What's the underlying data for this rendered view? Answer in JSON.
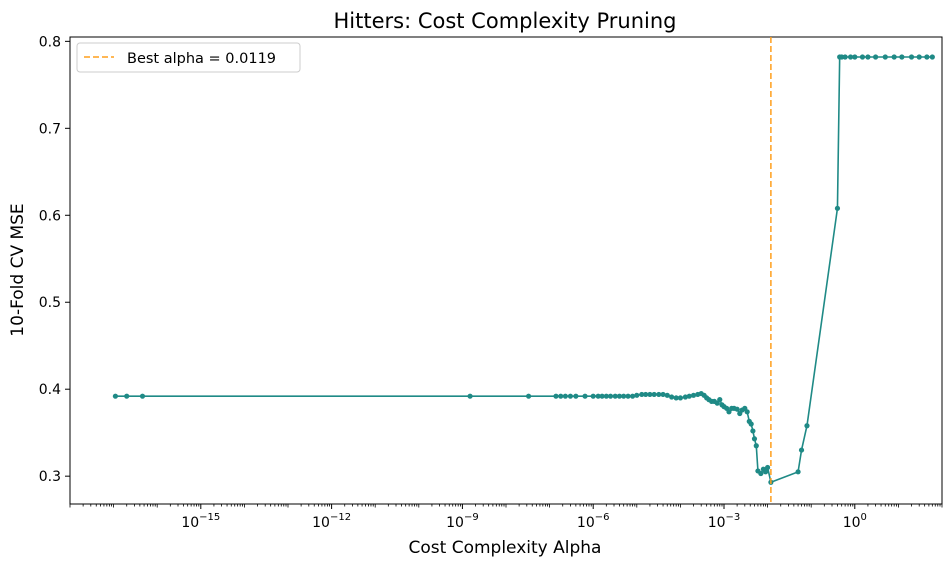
{
  "chart_data": {
    "type": "line",
    "title": "Hitters: Cost Complexity Pruning",
    "xlabel": "Cost Complexity Alpha",
    "ylabel": "10-Fold CV MSE",
    "x_scale": "log",
    "xlim": [
      1e-18,
      100.0
    ],
    "ylim": [
      0.268,
      0.805
    ],
    "x_ticks": [
      {
        "value": 1e-15,
        "base": "10",
        "exp": "−15"
      },
      {
        "value": 1e-12,
        "base": "10",
        "exp": "−12"
      },
      {
        "value": 1e-09,
        "base": "10",
        "exp": "−9"
      },
      {
        "value": 1e-06,
        "base": "10",
        "exp": "−6"
      },
      {
        "value": 0.001,
        "base": "10",
        "exp": "−3"
      },
      {
        "value": 1,
        "base": "10",
        "exp": "0"
      }
    ],
    "y_ticks": [
      {
        "value": 0.3,
        "label": "0.3"
      },
      {
        "value": 0.4,
        "label": "0.4"
      },
      {
        "value": 0.5,
        "label": "0.5"
      },
      {
        "value": 0.6,
        "label": "0.6"
      },
      {
        "value": 0.7,
        "label": "0.7"
      },
      {
        "value": 0.8,
        "label": "0.8"
      }
    ],
    "grid": false,
    "legend_position": "top-left",
    "colors": {
      "line": "#1f8a86",
      "marker": "#1f8a86",
      "best": "#ff9f1c",
      "frame": "#000000"
    },
    "series": [
      {
        "x": [
          1.1e-17,
          2e-17,
          4.6e-17,
          1.5e-09,
          3.3e-08,
          1.4e-07,
          1.8e-07,
          2.3e-07,
          3e-07,
          4e-07,
          6.5e-07,
          1e-06,
          1.3e-06,
          1.6e-06,
          2e-06,
          2.5e-06,
          3.2e-06,
          4e-06,
          5e-06,
          6.3e-06,
          8e-06,
          1e-05,
          1.3e-05,
          1.6e-05,
          2e-05,
          2.5e-05,
          3.2e-05,
          4e-05,
          5e-05,
          6.3e-05,
          8e-05,
          0.0001,
          0.00013,
          0.00016,
          0.0002,
          0.00025,
          0.0003,
          0.00035,
          0.0004,
          0.00045,
          0.00052,
          0.0006,
          0.0007,
          0.0008,
          0.0009,
          0.001,
          0.00115,
          0.0013,
          0.0015,
          0.0017,
          0.002,
          0.0023,
          0.0026,
          0.003,
          0.0034,
          0.0038,
          0.0042,
          0.0046,
          0.005,
          0.0055,
          0.006,
          0.007,
          0.008,
          0.009,
          0.01,
          0.0119,
          0.05,
          0.06,
          0.08,
          0.4,
          0.45,
          0.5,
          0.6,
          0.8,
          1.0,
          1.5,
          2.0,
          3.0,
          5.0,
          8.0,
          12,
          20,
          30,
          45,
          60
        ],
        "y": [
          0.392,
          0.392,
          0.392,
          0.392,
          0.392,
          0.392,
          0.392,
          0.392,
          0.392,
          0.392,
          0.392,
          0.392,
          0.392,
          0.392,
          0.392,
          0.392,
          0.392,
          0.392,
          0.392,
          0.392,
          0.392,
          0.393,
          0.394,
          0.394,
          0.394,
          0.394,
          0.394,
          0.394,
          0.393,
          0.391,
          0.39,
          0.39,
          0.391,
          0.392,
          0.393,
          0.394,
          0.395,
          0.393,
          0.39,
          0.388,
          0.386,
          0.386,
          0.384,
          0.388,
          0.382,
          0.38,
          0.378,
          0.374,
          0.378,
          0.378,
          0.377,
          0.372,
          0.376,
          0.378,
          0.374,
          0.363,
          0.36,
          0.352,
          0.343,
          0.335,
          0.306,
          0.303,
          0.308,
          0.305,
          0.31,
          0.293,
          0.305,
          0.33,
          0.358,
          0.608,
          0.782,
          0.782,
          0.782,
          0.782,
          0.782,
          0.782,
          0.782,
          0.782,
          0.782,
          0.782,
          0.782,
          0.782,
          0.782,
          0.782,
          0.782
        ]
      }
    ],
    "best_alpha": {
      "value": 0.0119,
      "label": "Best alpha = 0.0119"
    }
  }
}
